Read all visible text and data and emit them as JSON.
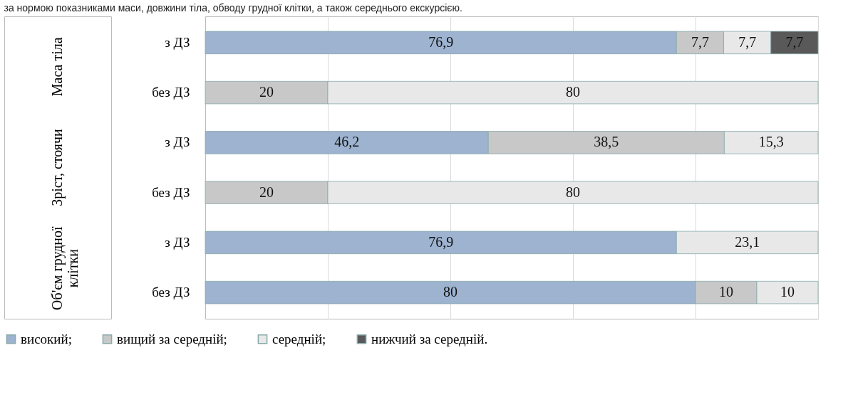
{
  "chart_data": {
    "type": "bar",
    "orientation": "horizontal",
    "stacked": true,
    "title": "за нормою показниками маси, довжини тіла, обводу грудної клітки, а також середнього екскурсією.",
    "categories": [
      "з ДЗ",
      "без ДЗ",
      "з ДЗ",
      "без ДЗ",
      "з ДЗ",
      "без ДЗ"
    ],
    "annotations": [
      "Маса тіла",
      "Зріст, стоячи",
      "Об'єм грудної клітки"
    ],
    "series": [
      {
        "name": "високий;",
        "color": "#9db3d0",
        "values": [
          76.9,
          null,
          46.2,
          null,
          76.9,
          80
        ],
        "value_labels": [
          "76,9",
          null,
          "46,2",
          null,
          "76,9",
          "80"
        ]
      },
      {
        "name": "вищий за середній;",
        "color": "#c8c8c8",
        "values": [
          7.7,
          20,
          38.5,
          20,
          null,
          10
        ],
        "value_labels": [
          "7,7",
          "20",
          "38,5",
          "20",
          null,
          "10"
        ]
      },
      {
        "name": "середній;",
        "color": "#e8e8e8",
        "values": [
          7.7,
          80,
          15.3,
          80,
          23.1,
          10
        ],
        "value_labels": [
          "7,7",
          "80",
          "15,3",
          "80",
          "23,1",
          "10"
        ]
      },
      {
        "name": "нижчий за середній.",
        "color": "#595959",
        "values": [
          7.7,
          null,
          null,
          null,
          null,
          null
        ],
        "value_labels": [
          "7,7",
          null,
          null,
          null,
          null,
          null
        ]
      }
    ],
    "xlim": [
      0,
      100
    ],
    "xticks": [
      {
        "value": 0,
        "label": null
      },
      {
        "value": 20,
        "label": null
      },
      {
        "value": 40,
        "label": null
      },
      {
        "value": 60,
        "label": null
      },
      {
        "value": 80,
        "label": null
      },
      {
        "value": 100,
        "label": null
      }
    ],
    "tick_labels": "y",
    "grid": "x",
    "legend": "bottom"
  }
}
